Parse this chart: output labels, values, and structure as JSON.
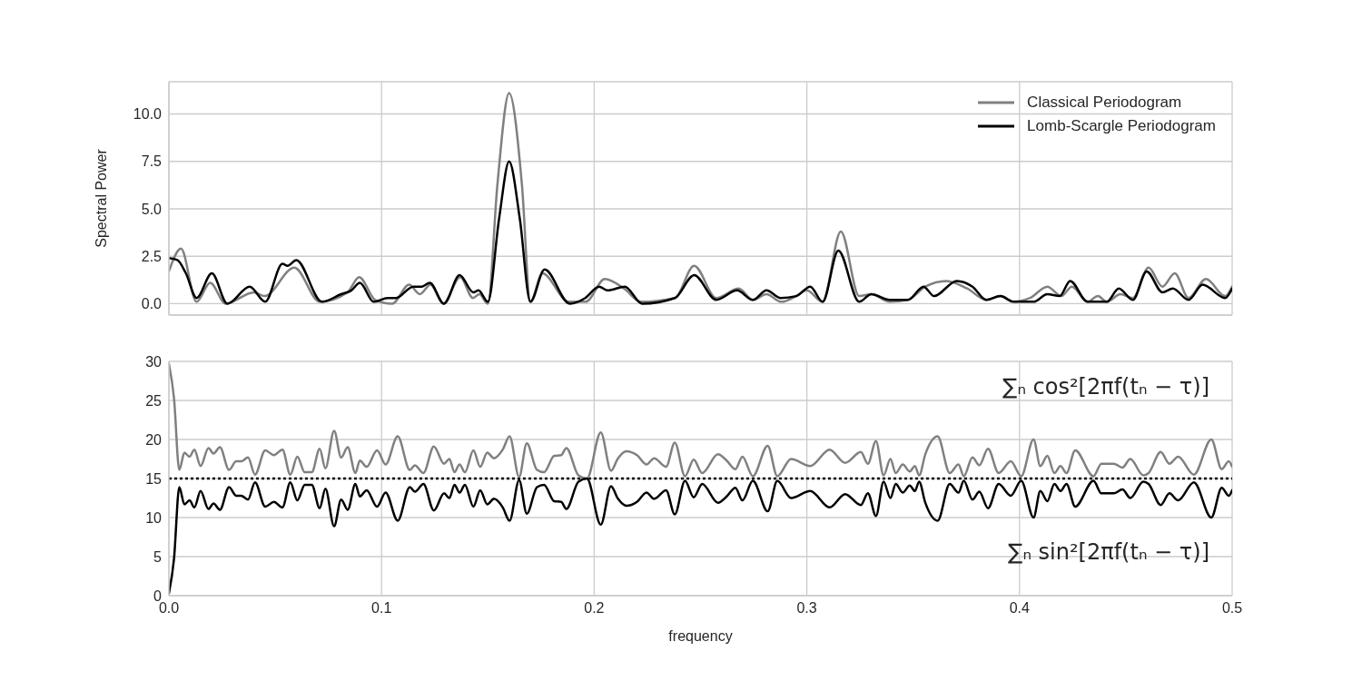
{
  "chart_data": [
    {
      "type": "line",
      "ylabel": "Spectral Power",
      "xlim": [
        0,
        0.5
      ],
      "xticks": [
        0,
        0.1,
        0.2,
        0.3,
        0.4,
        0.5
      ],
      "ylim": [
        -0.6,
        11.7
      ],
      "yticks": [
        {
          "value": 0,
          "label": "0.0"
        },
        2.5,
        {
          "value": 5,
          "label": "5.0"
        },
        7.5,
        {
          "value": 10,
          "label": "10.0"
        }
      ],
      "tick_labels": "y",
      "grid": true,
      "legend": "top right",
      "line_style": "solid",
      "series": [
        {
          "name": "Classical Periodogram",
          "color": "#808080",
          "x": [
            0,
            0.0057,
            0.013,
            0.0194,
            0.0267,
            0.04,
            0.045,
            0.059,
            0.071,
            0.084,
            0.0895,
            0.097,
            0.105,
            0.113,
            0.118,
            0.123,
            0.129,
            0.137,
            0.143,
            0.146,
            0.15,
            0.1545,
            0.16,
            0.166,
            0.17,
            0.1756,
            0.188,
            0.196,
            0.205,
            0.214,
            0.222,
            0.238,
            0.247,
            0.2574,
            0.268,
            0.2746,
            0.281,
            0.288,
            0.295,
            0.3,
            0.3074,
            0.316,
            0.3246,
            0.3303,
            0.339,
            0.3475,
            0.3557,
            0.3656,
            0.3754,
            0.3844,
            0.391,
            0.3967,
            0.405,
            0.4131,
            0.4197,
            0.4246,
            0.432,
            0.4369,
            0.441,
            0.4475,
            0.4533,
            0.4607,
            0.4672,
            0.473,
            0.4795,
            0.4877,
            0.4967,
            0.5
          ],
          "values": [
            1.7,
            2.9,
            0.1,
            1.1,
            0.0,
            0.6,
            0.4,
            1.9,
            0.1,
            0.6,
            1.4,
            0.2,
            0.0,
            1.0,
            0.5,
            1.0,
            0.0,
            1.4,
            0.3,
            0.5,
            0.0,
            6.3,
            11.1,
            6.3,
            0.1,
            1.6,
            0.1,
            0.1,
            1.3,
            0.8,
            0.1,
            0.3,
            2.0,
            0.3,
            0.8,
            0.2,
            0.5,
            0.1,
            0.4,
            0.7,
            0.1,
            3.8,
            0.4,
            0.5,
            0.1,
            0.2,
            0.9,
            1.2,
            0.8,
            0.2,
            0.4,
            0.1,
            0.3,
            0.9,
            0.4,
            0.9,
            0.1,
            0.4,
            0.1,
            0.5,
            0.3,
            1.9,
            0.9,
            1.6,
            0.3,
            1.3,
            0.4,
            0.9
          ]
        },
        {
          "name": "Lomb-Scargle Periodogram",
          "color": "#000000",
          "x": [
            0,
            0.004,
            0.008,
            0.013,
            0.0202,
            0.0275,
            0.038,
            0.0453,
            0.0534,
            0.0558,
            0.0599,
            0.072,
            0.081,
            0.0858,
            0.0898,
            0.0963,
            0.1028,
            0.1068,
            0.1149,
            0.1189,
            0.1227,
            0.1294,
            0.1367,
            0.1432,
            0.1456,
            0.15,
            0.1553,
            0.16,
            0.165,
            0.17,
            0.1767,
            0.1885,
            0.1958,
            0.2023,
            0.2063,
            0.2144,
            0.2225,
            0.2379,
            0.247,
            0.2574,
            0.2672,
            0.2746,
            0.281,
            0.2877,
            0.295,
            0.3016,
            0.3074,
            0.3148,
            0.3246,
            0.3303,
            0.339,
            0.3475,
            0.3549,
            0.3598,
            0.3705,
            0.3779,
            0.3844,
            0.391,
            0.3975,
            0.4066,
            0.4131,
            0.4189,
            0.4238,
            0.432,
            0.441,
            0.4467,
            0.4533,
            0.4598,
            0.4672,
            0.4721,
            0.4795,
            0.4861,
            0.4967,
            0.5
          ],
          "values": [
            2.4,
            2.3,
            1.6,
            0.3,
            1.6,
            0.0,
            0.9,
            0.1,
            2.1,
            2.0,
            2.3,
            0.1,
            0.5,
            0.7,
            1.1,
            0.1,
            0.3,
            0.3,
            0.9,
            0.9,
            1.1,
            0.0,
            1.5,
            0.6,
            0.7,
            0.1,
            4.5,
            7.5,
            4.5,
            0.1,
            1.8,
            0.0,
            0.3,
            0.9,
            0.7,
            0.9,
            0.0,
            0.3,
            1.5,
            0.2,
            0.7,
            0.2,
            0.7,
            0.3,
            0.4,
            0.9,
            0.1,
            2.8,
            0.1,
            0.5,
            0.2,
            0.2,
            0.9,
            0.4,
            1.2,
            0.9,
            0.2,
            0.4,
            0.1,
            0.1,
            0.5,
            0.4,
            1.2,
            0.1,
            0.1,
            0.8,
            0.2,
            1.7,
            0.6,
            0.8,
            0.2,
            1.0,
            0.3,
            0.8
          ]
        }
      ]
    },
    {
      "type": "line",
      "xlabel": "frequency",
      "xlim": [
        0,
        0.5
      ],
      "xticks": [
        {
          "value": 0,
          "label": "0.0"
        },
        0.1,
        0.2,
        0.3,
        0.4,
        0.5
      ],
      "ylim": [
        0,
        30
      ],
      "yticks": [
        0,
        5,
        10,
        15,
        20,
        25,
        30
      ],
      "grid": true,
      "line_style": "solid",
      "annotations": [
        "∑ₙ cos²[2πf(tₙ − τ)]",
        "∑ₙ sin²[2πf(tₙ − τ)]"
      ],
      "ref_lines": [
        {
          "axis": "y",
          "value": 15,
          "color": "#000000",
          "line_style": "dotted"
        }
      ],
      "x": [
        0,
        0.0024,
        0.0049,
        0.0073,
        0.0097,
        0.012,
        0.0149,
        0.0186,
        0.021,
        0.024,
        0.0283,
        0.0316,
        0.034,
        0.0372,
        0.0405,
        0.0453,
        0.0494,
        0.0534,
        0.0571,
        0.0604,
        0.0639,
        0.0672,
        0.0709,
        0.0736,
        0.0777,
        0.081,
        0.0841,
        0.0877,
        0.0898,
        0.093,
        0.0979,
        0.1019,
        0.1076,
        0.1133,
        0.1157,
        0.1197,
        0.1246,
        0.1294,
        0.1319,
        0.1343,
        0.1367,
        0.1392,
        0.1432,
        0.1464,
        0.1497,
        0.1529,
        0.157,
        0.1602,
        0.1647,
        0.1683,
        0.1731,
        0.1764,
        0.1812,
        0.1845,
        0.1869,
        0.1926,
        0.1966,
        0.2031,
        0.2079,
        0.2112,
        0.2152,
        0.2201,
        0.2246,
        0.2282,
        0.2338,
        0.2379,
        0.2427,
        0.2468,
        0.2508,
        0.2582,
        0.2623,
        0.2664,
        0.2697,
        0.2746,
        0.2816,
        0.2861,
        0.2926,
        0.3016,
        0.3107,
        0.318,
        0.3254,
        0.3287,
        0.3325,
        0.3361,
        0.3393,
        0.3418,
        0.3451,
        0.3484,
        0.3508,
        0.3528,
        0.3557,
        0.3615,
        0.3672,
        0.3713,
        0.3738,
        0.3779,
        0.3811,
        0.3852,
        0.3902,
        0.3959,
        0.4008,
        0.4066,
        0.4098,
        0.4131,
        0.4164,
        0.4193,
        0.4221,
        0.4262,
        0.4348,
        0.4385,
        0.4443,
        0.4484,
        0.4521,
        0.4582,
        0.4607,
        0.4664,
        0.4705,
        0.4746,
        0.482,
        0.4902,
        0.4951,
        0.4984,
        0.5
      ],
      "series": [
        {
          "color": "#808080",
          "values": [
            29.7,
            25.3,
            16.1,
            18.3,
            17.8,
            18.7,
            16.6,
            18.9,
            18.2,
            19.0,
            16.1,
            17.2,
            17.2,
            17.7,
            15.5,
            18.6,
            18.0,
            18.7,
            15.5,
            17.8,
            15.8,
            15.8,
            18.8,
            16.3,
            21.1,
            17.7,
            19.0,
            15.7,
            17.3,
            16.5,
            18.6,
            16.8,
            20.4,
            16.1,
            16.7,
            15.7,
            19.1,
            16.9,
            17.5,
            15.8,
            16.8,
            15.8,
            18.6,
            16.5,
            18.3,
            17.6,
            18.7,
            20.4,
            15.2,
            19.5,
            16.1,
            15.8,
            17.9,
            18.0,
            18.9,
            15.4,
            15.0,
            20.9,
            16.0,
            17.6,
            18.5,
            18.0,
            16.8,
            17.6,
            16.5,
            19.6,
            15.3,
            17.4,
            15.7,
            18.1,
            17.3,
            16.2,
            17.8,
            15.3,
            19.2,
            15.3,
            17.5,
            16.6,
            18.7,
            17.0,
            18.4,
            16.9,
            19.8,
            15.4,
            17.5,
            15.7,
            16.8,
            15.9,
            16.6,
            15.4,
            18.1,
            20.4,
            15.7,
            16.8,
            15.3,
            17.7,
            16.7,
            18.8,
            15.7,
            17.2,
            15.3,
            20.0,
            16.6,
            17.9,
            15.7,
            16.6,
            15.7,
            18.6,
            15.3,
            16.9,
            16.9,
            16.4,
            17.5,
            15.4,
            15.7,
            18.4,
            16.9,
            17.8,
            15.5,
            20.0,
            16.2,
            17.2,
            16.5
          ]
        },
        {
          "color": "#000000",
          "values": [
            0.3,
            4.7,
            13.9,
            11.7,
            12.2,
            11.3,
            13.4,
            11.1,
            11.8,
            11.0,
            13.9,
            12.8,
            12.8,
            12.3,
            14.5,
            11.4,
            12.0,
            11.3,
            14.5,
            12.2,
            14.2,
            14.2,
            11.2,
            13.7,
            8.9,
            12.3,
            11.0,
            14.3,
            12.7,
            13.5,
            11.4,
            13.2,
            9.6,
            13.9,
            13.3,
            14.3,
            10.9,
            13.1,
            12.5,
            14.2,
            13.2,
            14.2,
            11.4,
            13.5,
            11.7,
            12.4,
            11.3,
            9.6,
            14.8,
            10.5,
            13.9,
            14.2,
            12.1,
            12.0,
            11.1,
            14.6,
            15.0,
            9.1,
            14.0,
            12.4,
            11.5,
            12.0,
            13.2,
            12.4,
            13.5,
            10.4,
            14.7,
            12.6,
            14.3,
            11.9,
            12.7,
            13.8,
            12.2,
            14.7,
            10.8,
            14.7,
            12.5,
            13.4,
            11.3,
            13.0,
            11.6,
            13.1,
            10.2,
            14.6,
            12.5,
            14.3,
            13.2,
            14.1,
            13.4,
            14.6,
            11.9,
            9.6,
            14.3,
            13.2,
            14.7,
            12.3,
            13.3,
            11.2,
            14.3,
            12.8,
            14.7,
            10.0,
            13.4,
            12.1,
            14.3,
            13.4,
            14.3,
            11.4,
            14.7,
            13.1,
            13.1,
            13.6,
            12.5,
            14.6,
            14.3,
            11.6,
            13.1,
            12.2,
            14.5,
            10.0,
            13.8,
            12.8,
            13.5
          ]
        }
      ]
    }
  ]
}
